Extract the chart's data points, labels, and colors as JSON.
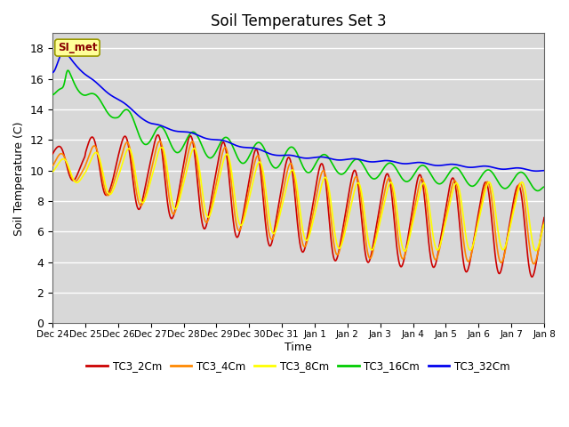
{
  "title": "Soil Temperatures Set 3",
  "xlabel": "Time",
  "ylabel": "Soil Temperature (C)",
  "ylim": [
    0,
    19
  ],
  "yticks": [
    0,
    2,
    4,
    6,
    8,
    10,
    12,
    14,
    16,
    18
  ],
  "xtick_labels": [
    "Dec 24",
    "Dec 25",
    "Dec 26",
    "Dec 27",
    "Dec 28",
    "Dec 29",
    "Dec 30",
    "Dec 31",
    "Jan 1",
    "Jan 2",
    "Jan 3",
    "Jan 4",
    "Jan 5",
    "Jan 6",
    "Jan 7",
    "Jan 8"
  ],
  "series_colors": {
    "TC3_2Cm": "#cc0000",
    "TC3_4Cm": "#ff8800",
    "TC3_8Cm": "#ffff00",
    "TC3_16Cm": "#00cc00",
    "TC3_32Cm": "#0000ee"
  },
  "legend_box_color": "#ffff99",
  "legend_text_color": "#880000",
  "bg_color": "#d8d8d8",
  "grid_color": "#ffffff",
  "line_width": 1.2,
  "annotation": "SI_met"
}
